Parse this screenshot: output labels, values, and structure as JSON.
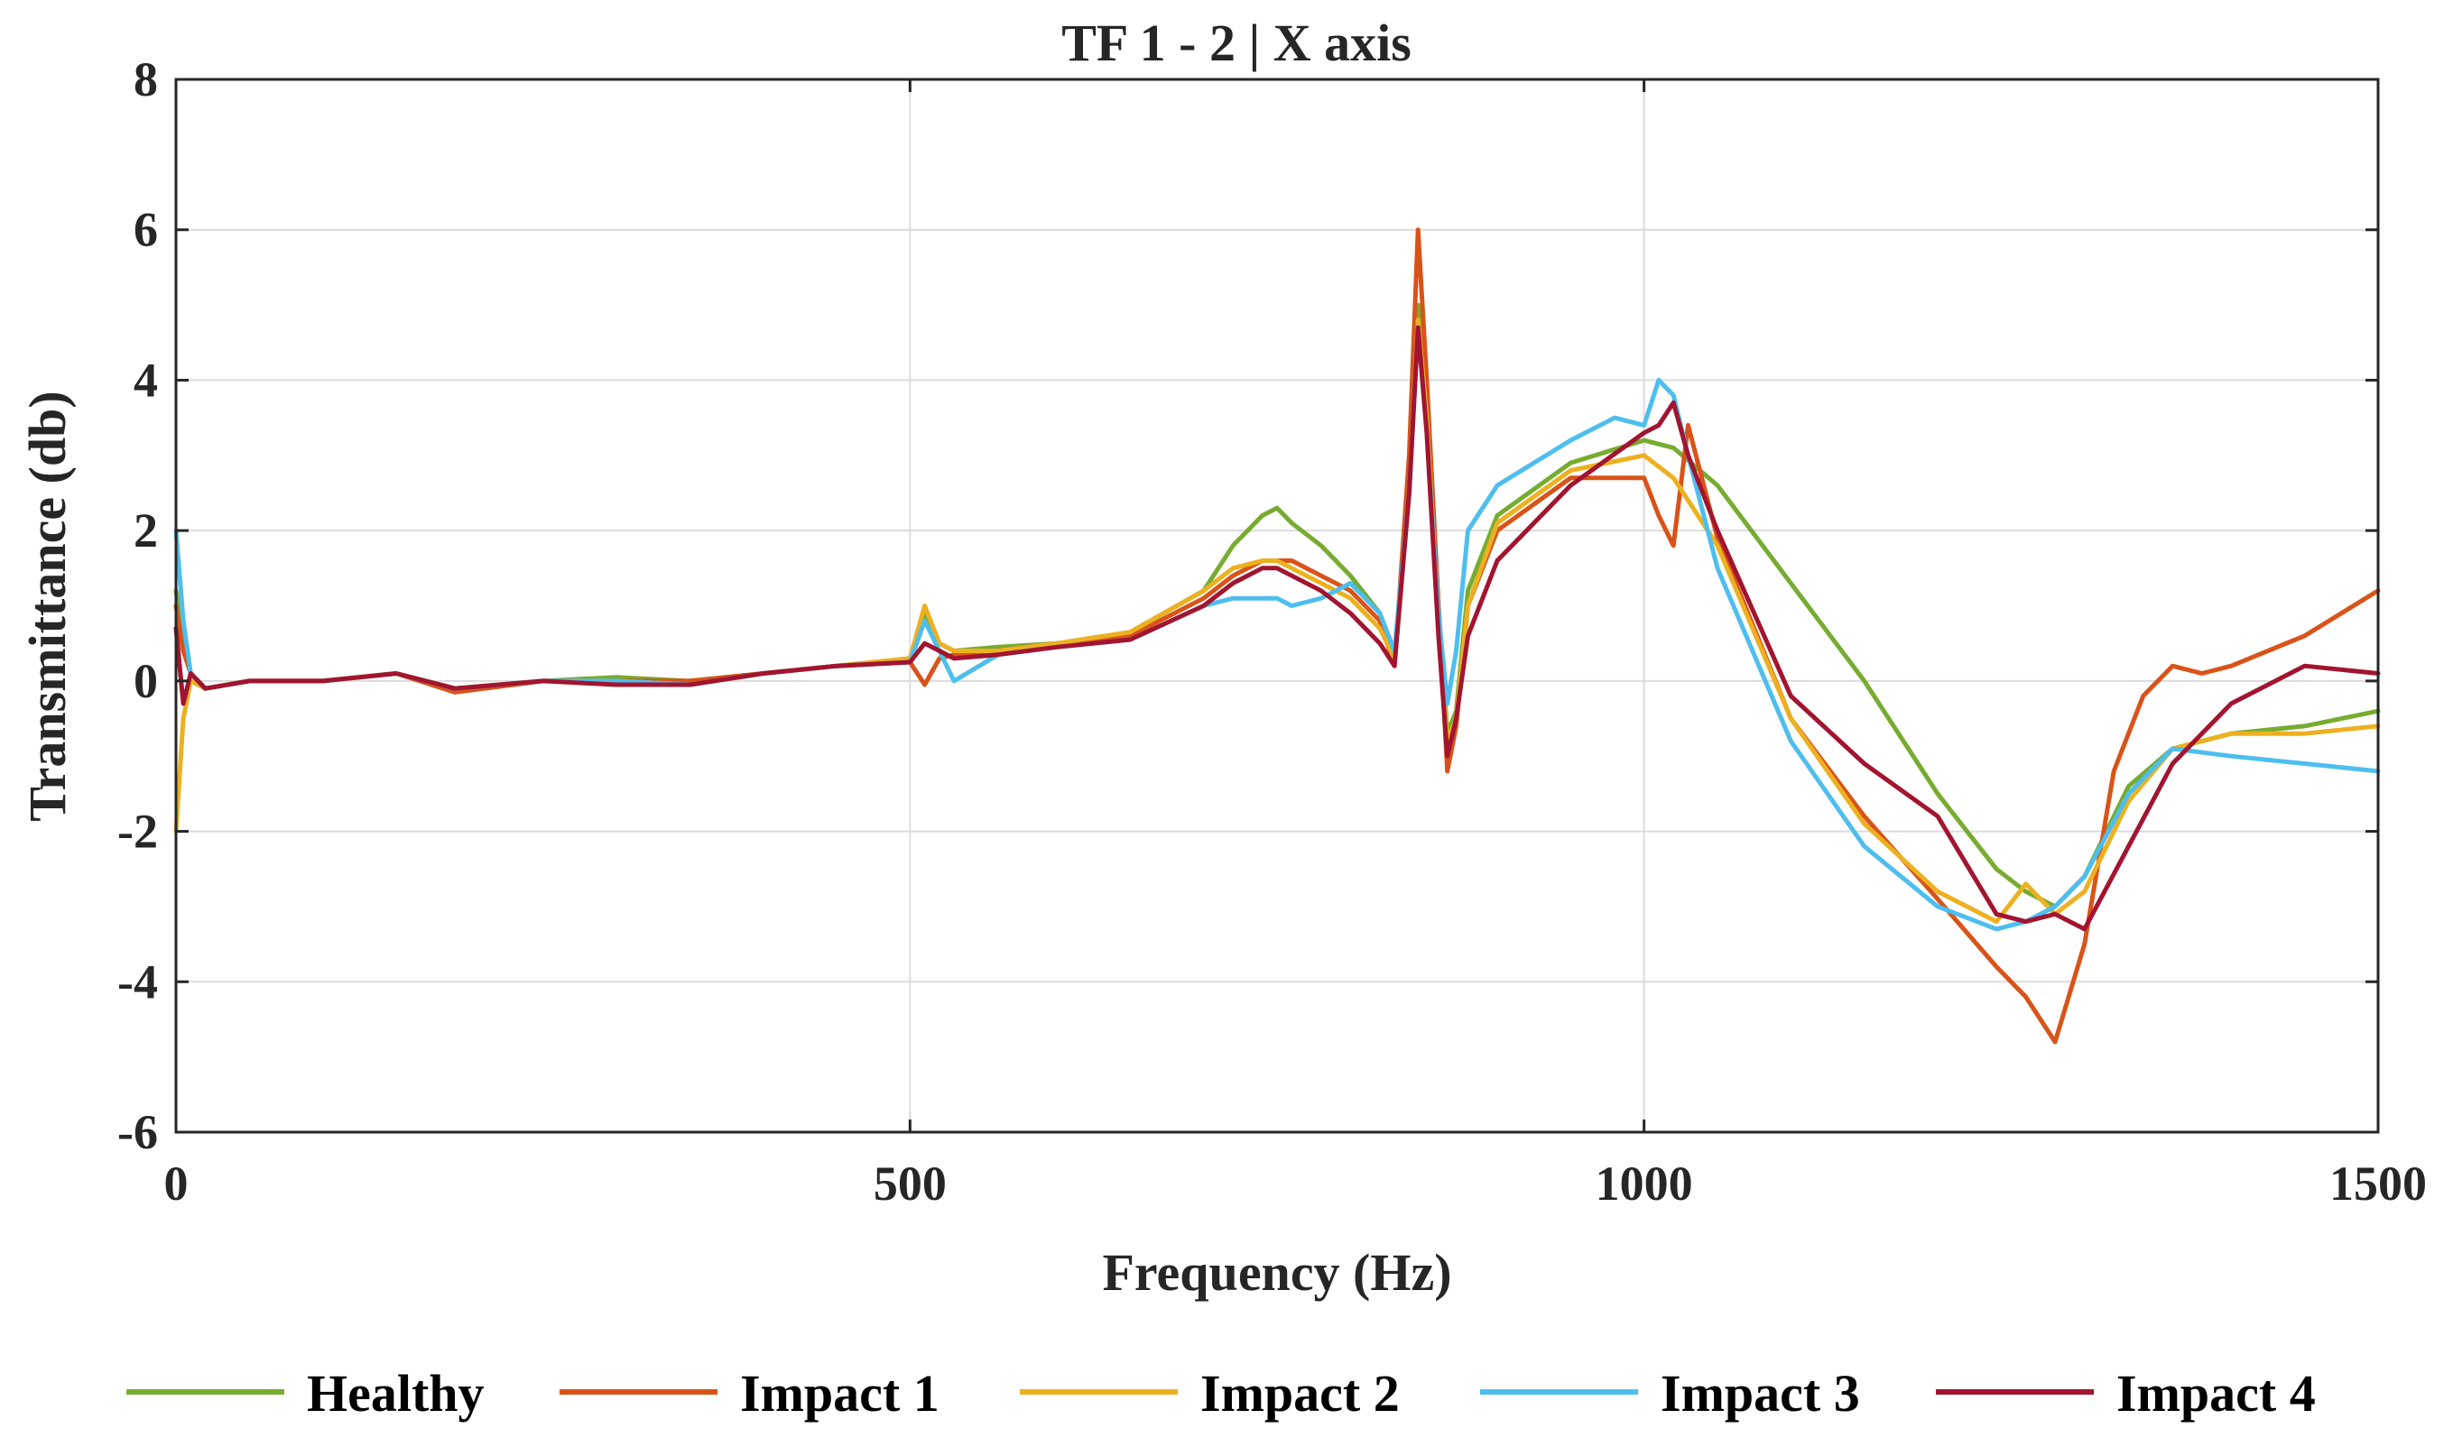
{
  "chart_data": {
    "type": "line",
    "title": "TF 1 - 2 | X axis",
    "xlabel": "Frequency (Hz)",
    "ylabel": "Transmittance (db)",
    "xlim": [
      0,
      1500
    ],
    "ylim": [
      -6,
      8
    ],
    "xticks": [
      0,
      500,
      1000,
      1500
    ],
    "yticks": [
      -6,
      -4,
      -2,
      0,
      2,
      4,
      6,
      8
    ],
    "grid": true,
    "legend_position": "bottom",
    "series": [
      {
        "name": "Healthy",
        "color": "#77AC30",
        "x": [
          0,
          5,
          10,
          20,
          50,
          100,
          150,
          190,
          250,
          300,
          350,
          400,
          450,
          500,
          510,
          520,
          530,
          560,
          600,
          650,
          700,
          720,
          740,
          750,
          760,
          780,
          800,
          820,
          830,
          840,
          846,
          852,
          860,
          866,
          872,
          880,
          900,
          950,
          1000,
          1020,
          1050,
          1100,
          1150,
          1200,
          1240,
          1260,
          1280,
          1300,
          1330,
          1360,
          1400,
          1450,
          1500
        ],
        "y": [
          1.2,
          0.6,
          0.1,
          -0.1,
          0.0,
          0.0,
          0.1,
          -0.1,
          0.0,
          0.05,
          0.0,
          0.1,
          0.2,
          0.3,
          0.9,
          0.5,
          0.4,
          0.45,
          0.5,
          0.65,
          1.2,
          1.8,
          2.2,
          2.3,
          2.1,
          1.8,
          1.4,
          0.9,
          0.3,
          2.5,
          5.0,
          3.5,
          1.0,
          -0.7,
          -0.4,
          1.2,
          2.2,
          2.9,
          3.2,
          3.1,
          2.6,
          1.3,
          0.0,
          -1.5,
          -2.5,
          -2.8,
          -3.0,
          -2.6,
          -1.4,
          -0.9,
          -0.7,
          -0.6,
          -0.4
        ]
      },
      {
        "name": "Impact 1",
        "color": "#D95319",
        "x": [
          0,
          5,
          10,
          20,
          50,
          100,
          150,
          190,
          250,
          300,
          350,
          400,
          450,
          500,
          510,
          520,
          530,
          560,
          600,
          650,
          700,
          720,
          740,
          750,
          760,
          780,
          800,
          820,
          830,
          840,
          846,
          852,
          860,
          866,
          872,
          880,
          900,
          950,
          1000,
          1010,
          1020,
          1030,
          1050,
          1100,
          1150,
          1200,
          1240,
          1260,
          1280,
          1300,
          1320,
          1340,
          1360,
          1380,
          1400,
          1450,
          1500
        ],
        "y": [
          1.0,
          0.4,
          0.1,
          -0.1,
          0.0,
          0.0,
          0.1,
          -0.15,
          0.0,
          0.0,
          0.0,
          0.1,
          0.2,
          0.25,
          -0.05,
          0.3,
          0.35,
          0.4,
          0.5,
          0.6,
          1.1,
          1.4,
          1.6,
          1.6,
          1.6,
          1.4,
          1.2,
          0.8,
          0.2,
          3.0,
          6.0,
          4.0,
          1.0,
          -1.2,
          -0.6,
          1.0,
          2.0,
          2.7,
          2.7,
          2.2,
          1.8,
          3.4,
          1.9,
          -0.5,
          -1.8,
          -2.9,
          -3.8,
          -4.2,
          -4.8,
          -3.5,
          -1.2,
          -0.2,
          0.2,
          0.1,
          0.2,
          0.6,
          1.2
        ]
      },
      {
        "name": "Impact 2",
        "color": "#EDB120",
        "x": [
          0,
          5,
          10,
          20,
          50,
          100,
          150,
          190,
          250,
          300,
          350,
          400,
          450,
          500,
          510,
          520,
          530,
          560,
          600,
          650,
          700,
          720,
          740,
          750,
          760,
          780,
          800,
          820,
          830,
          840,
          846,
          852,
          860,
          866,
          872,
          880,
          900,
          950,
          1000,
          1020,
          1050,
          1100,
          1150,
          1200,
          1240,
          1260,
          1280,
          1300,
          1330,
          1360,
          1400,
          1450,
          1500
        ],
        "y": [
          -2.0,
          -0.5,
          0.0,
          -0.1,
          0.0,
          0.0,
          0.1,
          -0.1,
          0.0,
          0.0,
          -0.05,
          0.1,
          0.2,
          0.3,
          1.0,
          0.5,
          0.4,
          0.4,
          0.5,
          0.65,
          1.2,
          1.5,
          1.6,
          1.6,
          1.5,
          1.3,
          1.1,
          0.7,
          0.3,
          2.5,
          4.8,
          3.5,
          0.8,
          -0.8,
          -0.5,
          1.0,
          2.1,
          2.8,
          3.0,
          2.7,
          1.8,
          -0.5,
          -1.9,
          -2.8,
          -3.2,
          -2.7,
          -3.1,
          -2.8,
          -1.6,
          -0.9,
          -0.7,
          -0.7,
          -0.6
        ]
      },
      {
        "name": "Impact 3",
        "color": "#4DBEEE",
        "x": [
          0,
          5,
          10,
          20,
          50,
          100,
          150,
          190,
          250,
          300,
          350,
          400,
          450,
          500,
          510,
          520,
          530,
          560,
          600,
          650,
          700,
          720,
          740,
          750,
          760,
          780,
          800,
          820,
          830,
          840,
          846,
          852,
          860,
          866,
          872,
          880,
          900,
          950,
          980,
          1000,
          1010,
          1020,
          1030,
          1050,
          1100,
          1150,
          1200,
          1240,
          1260,
          1280,
          1300,
          1330,
          1360,
          1400,
          1450,
          1500
        ],
        "y": [
          2.0,
          0.8,
          0.1,
          -0.1,
          0.0,
          0.0,
          0.1,
          -0.1,
          0.0,
          0.0,
          -0.05,
          0.1,
          0.2,
          0.25,
          0.8,
          0.4,
          0.0,
          0.35,
          0.45,
          0.55,
          1.0,
          1.1,
          1.1,
          1.1,
          1.0,
          1.1,
          1.3,
          0.9,
          0.4,
          2.5,
          4.7,
          3.3,
          0.9,
          -0.3,
          0.4,
          2.0,
          2.6,
          3.2,
          3.5,
          3.4,
          4.0,
          3.8,
          3.0,
          1.5,
          -0.8,
          -2.2,
          -3.0,
          -3.3,
          -3.2,
          -3.0,
          -2.6,
          -1.5,
          -0.9,
          -1.0,
          -1.1,
          -1.2
        ]
      },
      {
        "name": "Impact 4",
        "color": "#A2142F",
        "x": [
          0,
          5,
          10,
          20,
          50,
          100,
          150,
          190,
          250,
          300,
          350,
          400,
          450,
          500,
          510,
          520,
          530,
          560,
          600,
          650,
          700,
          720,
          740,
          750,
          760,
          780,
          800,
          820,
          830,
          840,
          846,
          852,
          860,
          866,
          872,
          880,
          900,
          950,
          1000,
          1010,
          1020,
          1030,
          1050,
          1100,
          1150,
          1200,
          1240,
          1260,
          1280,
          1300,
          1330,
          1360,
          1400,
          1450,
          1500
        ],
        "y": [
          0.7,
          -0.3,
          0.1,
          -0.1,
          0.0,
          0.0,
          0.1,
          -0.1,
          0.0,
          -0.05,
          -0.05,
          0.1,
          0.2,
          0.25,
          0.5,
          0.4,
          0.3,
          0.35,
          0.45,
          0.55,
          1.0,
          1.3,
          1.5,
          1.5,
          1.4,
          1.2,
          0.9,
          0.5,
          0.2,
          2.5,
          4.7,
          3.3,
          0.6,
          -1.0,
          -0.5,
          0.6,
          1.6,
          2.6,
          3.3,
          3.4,
          3.7,
          3.0,
          2.0,
          -0.2,
          -1.1,
          -1.8,
          -3.1,
          -3.2,
          -3.1,
          -3.3,
          -2.2,
          -1.1,
          -0.3,
          0.2,
          0.1
        ]
      }
    ]
  }
}
